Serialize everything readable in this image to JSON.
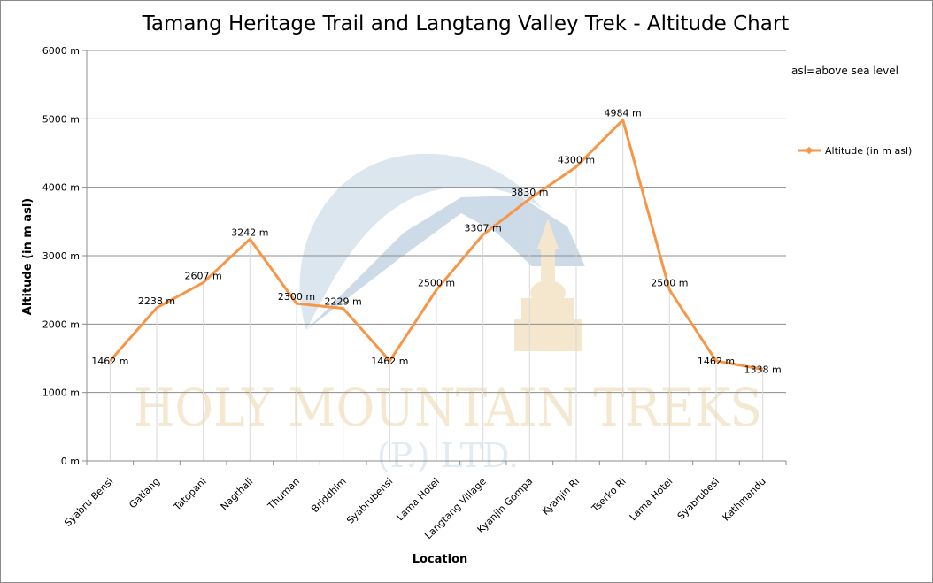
{
  "chart_data": {
    "type": "line",
    "title": "Tamang Heritage Trail and Langtang Valley Trek - Altitude Chart",
    "xlabel": "Location",
    "ylabel": "Altitude (in m asl)",
    "ylim": [
      0,
      6000
    ],
    "yticks": [
      "0 m",
      "1000 m",
      "2000 m",
      "3000 m",
      "4000 m",
      "5000 m",
      "6000 m"
    ],
    "ytick_values": [
      0,
      1000,
      2000,
      3000,
      4000,
      5000,
      6000
    ],
    "grid": true,
    "categories": [
      "Syabru Bensi",
      "Gatlang",
      "Tatopani",
      "Nagthali",
      "Thuman",
      "Briddhim",
      "Syabrubensi",
      "Lama Hotel",
      "Langtang Village",
      "Kyanjin Gompa",
      "Kyanjin Ri",
      "Tserko Ri",
      "Lama Hotel",
      "Syabrubesi",
      "Kathmandu"
    ],
    "series": [
      {
        "name": "Altitude (in  m asl)",
        "color": "#f79646",
        "values": [
          1462,
          2238,
          2607,
          3242,
          2300,
          2229,
          1462,
          2500,
          3307,
          3830,
          4300,
          4984,
          2500,
          1462,
          1338
        ],
        "labels": [
          "1462 m",
          "2238 m",
          "2607 m",
          "3242 m",
          "2300 m",
          "2229 m",
          "1462 m",
          "2500 m",
          "3307 m",
          "3830 m",
          "4300 m",
          "4984 m",
          "2500 m",
          "1462 m",
          "1338 m"
        ]
      }
    ],
    "legend_position": "right",
    "annotation": "asl=above sea level"
  },
  "watermark": {
    "line1": "HOLY MOUNTAIN TREKS",
    "line2": "(P.) LTD."
  }
}
